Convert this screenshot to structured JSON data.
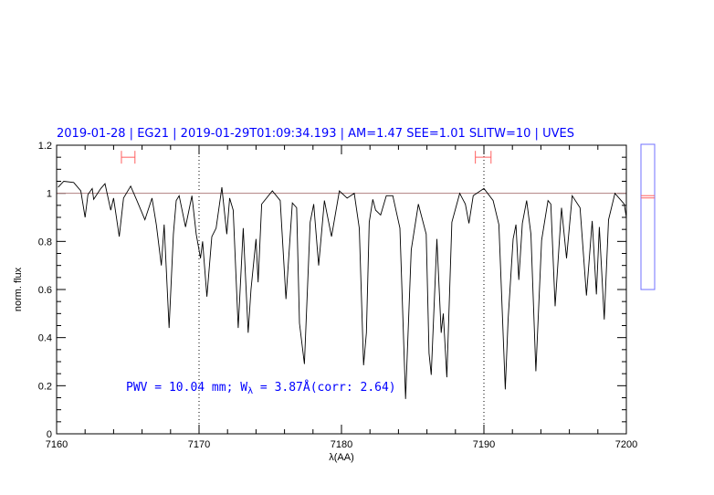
{
  "chart_data": {
    "type": "line",
    "title": "2019-01-28 | EG21 | 2019-01-29T01:09:34.193 | AM=1.47 SEE=1.01 SLITW=10 | UVES",
    "xlabel": "λ(AA)",
    "ylabel": "norm. flux",
    "xlim": [
      7160,
      7200
    ],
    "ylim": [
      0,
      1.2
    ],
    "xticks": [
      "7160",
      "7170",
      "7180",
      "7190",
      "7200"
    ],
    "yticks": [
      "0",
      "0.2",
      "0.4",
      "0.6",
      "0.8",
      "1",
      "1.2"
    ],
    "continuum_level": 1,
    "reference_lines_x": [
      7170,
      7190
    ],
    "error_bars": [
      {
        "x_from": 7164.55,
        "x_to": 7165.5,
        "y": 1.15
      },
      {
        "x_from": 7189.4,
        "x_to": 7190.5,
        "y": 1.15
      }
    ],
    "annotation": {
      "prefix": "PWV = 10.04 mm; W",
      "subscript": "λ",
      "suffix": " = 3.87Å(corr: 2.64)"
    },
    "series": [
      {
        "x": [
          7160.1,
          7160.5,
          7161.2,
          7161.7,
          7162.0,
          7162.2,
          7162.5,
          7162.6,
          7163.1,
          7163.4,
          7163.8,
          7164.0,
          7164.4,
          7164.7,
          7165.2,
          7165.6,
          7166.2,
          7166.7,
          7167.0,
          7167.35,
          7167.55,
          7167.9,
          7168.2,
          7168.4,
          7168.6,
          7169.05,
          7169.5,
          7169.8,
          7170.1,
          7170.25,
          7170.55,
          7170.9,
          7171.2,
          7171.6,
          7171.95,
          7172.15,
          7172.4,
          7172.75,
          7173.1,
          7173.45,
          7173.65,
          7174.0,
          7174.15,
          7174.4,
          7175.15,
          7175.7,
          7176.1,
          7176.55,
          7176.85,
          7177.05,
          7177.4,
          7177.8,
          7178.05,
          7178.4,
          7178.8,
          7179.3,
          7179.85,
          7180.4,
          7180.9,
          7181.25,
          7181.55,
          7181.75,
          7181.95,
          7182.2,
          7182.4,
          7182.75,
          7183.15,
          7183.6,
          7184.1,
          7184.5,
          7184.9,
          7185.4,
          7185.95,
          7186.15,
          7186.3,
          7186.7,
          7187.0,
          7187.15,
          7187.4,
          7187.75,
          7188.3,
          7188.7,
          7188.95,
          7189.25,
          7190.0,
          7190.65,
          7191.05,
          7191.5,
          7191.7,
          7192.05,
          7192.25,
          7192.45,
          7192.7,
          7193.0,
          7193.3,
          7193.65,
          7194.05,
          7194.5,
          7194.7,
          7195.0,
          7195.45,
          7195.8,
          7196.2,
          7196.75,
          7197.2,
          7197.6,
          7197.9,
          7198.1,
          7198.45,
          7198.75,
          7199.2,
          7199.85,
          7200.0
        ],
        "y": [
          1.025,
          1.05,
          1.045,
          1.01,
          0.9,
          0.995,
          1.02,
          0.975,
          1.02,
          1.04,
          0.93,
          0.98,
          0.82,
          0.98,
          1.03,
          0.975,
          0.89,
          0.98,
          0.87,
          0.7,
          0.87,
          0.44,
          0.83,
          0.97,
          0.99,
          0.86,
          0.99,
          0.83,
          0.73,
          0.8,
          0.57,
          0.82,
          0.855,
          1.025,
          0.83,
          0.98,
          0.93,
          0.44,
          0.855,
          0.42,
          0.6,
          0.81,
          0.63,
          0.955,
          1.01,
          0.97,
          0.56,
          0.96,
          0.94,
          0.46,
          0.29,
          0.88,
          0.955,
          0.7,
          0.97,
          0.82,
          1.01,
          0.98,
          1.0,
          0.855,
          0.285,
          0.42,
          0.88,
          0.975,
          0.93,
          0.91,
          0.99,
          0.99,
          0.855,
          0.145,
          0.765,
          0.955,
          0.83,
          0.335,
          0.245,
          0.81,
          0.42,
          0.5,
          0.235,
          0.88,
          1.0,
          0.955,
          0.875,
          0.99,
          1.02,
          0.97,
          0.87,
          0.185,
          0.475,
          0.81,
          0.87,
          0.64,
          0.875,
          0.97,
          0.83,
          0.26,
          0.805,
          0.97,
          0.955,
          0.53,
          0.94,
          0.73,
          0.99,
          0.94,
          0.575,
          0.885,
          0.58,
          0.86,
          0.475,
          0.89,
          1.0,
          0.955,
          0.9
        ]
      }
    ],
    "side_indicator": {
      "marker_fraction_from_top": 0.36
    }
  },
  "colors": {
    "title": "#0000ff",
    "errorbar": "#ff6060",
    "continuum": "#b08080",
    "spectrum": "#000000",
    "side_box": "#7070ff"
  }
}
